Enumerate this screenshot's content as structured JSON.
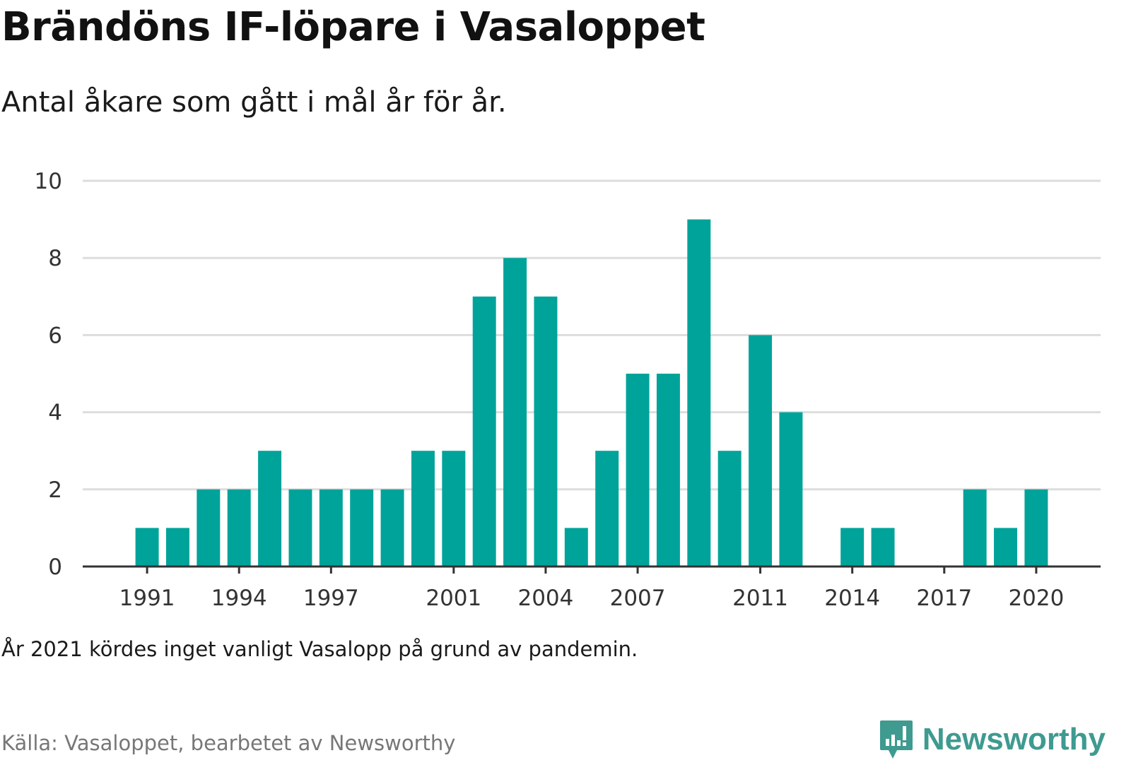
{
  "title": "Brändöns IF-löpare i Vasaloppet",
  "subtitle": "Antal åkare som gått i mål år för år.",
  "note": "År 2021 kördes inget vanligt Vasalopp på grund av pandemin.",
  "source": "Källa: Vasaloppet, bearbetet av Newsworthy",
  "logo_text": "Newsworthy",
  "colors": {
    "bar": "#00a39a",
    "grid": "#dddddd",
    "axis": "#333333",
    "logo": "#3f9a90"
  },
  "chart_data": {
    "type": "bar",
    "x": [
      1991,
      1992,
      1993,
      1994,
      1995,
      1996,
      1997,
      1998,
      1999,
      2000,
      2001,
      2002,
      2003,
      2004,
      2005,
      2006,
      2007,
      2008,
      2009,
      2010,
      2011,
      2012,
      2013,
      2014,
      2015,
      2016,
      2017,
      2018,
      2019,
      2020
    ],
    "values": [
      1,
      1,
      2,
      2,
      3,
      2,
      2,
      2,
      2,
      3,
      3,
      7,
      8,
      7,
      1,
      3,
      5,
      5,
      9,
      3,
      6,
      4,
      0,
      1,
      1,
      0,
      0,
      2,
      1,
      2
    ],
    "x_tick_labels": [
      "1991",
      "1994",
      "1997",
      "2001",
      "2004",
      "2007",
      "2011",
      "2014",
      "2017",
      "2020"
    ],
    "y_ticks": [
      0,
      2,
      4,
      6,
      8,
      10
    ],
    "ylim": [
      0,
      10
    ],
    "xlim": [
      1988.9,
      2022.1
    ],
    "grid": true,
    "xlabel": "",
    "ylabel": ""
  }
}
